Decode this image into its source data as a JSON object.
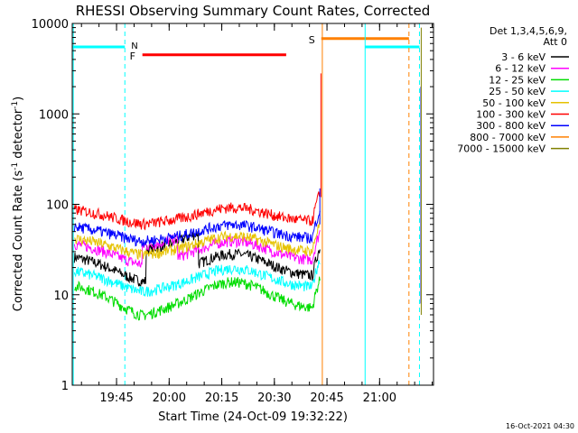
{
  "chart_data": {
    "type": "line",
    "title": "RHESSI Observing Summary Count Rates, Corrected",
    "xlabel": "Start Time (24-Oct-09 19:32:22)",
    "ylabel_main": "Corrected Count Rate (s",
    "ylabel_sup1": "-1",
    "ylabel_mid": " detector",
    "ylabel_sup2": "-1",
    "ylabel_end": ")",
    "yscale": "log",
    "ylim": [
      1,
      10000
    ],
    "xlim_minutes": [
      0,
      103
    ],
    "x_start": "19:32:22",
    "x_ticks": [
      {
        "label": "19:45",
        "min": 12.63
      },
      {
        "label": "20:00",
        "min": 27.63
      },
      {
        "label": "20:15",
        "min": 42.63
      },
      {
        "label": "20:30",
        "min": 57.63
      },
      {
        "label": "20:45",
        "min": 72.63
      },
      {
        "label": "21:00",
        "min": 87.63
      }
    ],
    "y_ticks": [
      {
        "label": "1",
        "v": 1
      },
      {
        "label": "10",
        "v": 10
      },
      {
        "label": "100",
        "v": 100
      },
      {
        "label": "1000",
        "v": 1000
      },
      {
        "label": "10000",
        "v": 10000
      }
    ],
    "legend_header": [
      "Det 1,3,4,5,6,9,",
      "Att 0"
    ],
    "series": [
      {
        "name": "3 - 6 keV",
        "color": "#000000"
      },
      {
        "name": "6 - 12 keV",
        "color": "#ff00ff"
      },
      {
        "name": "12 - 25 keV",
        "color": "#00dd00"
      },
      {
        "name": "25 - 50 keV",
        "color": "#00ffff"
      },
      {
        "name": "50 - 100 keV",
        "color": "#e6c200"
      },
      {
        "name": "100 - 300 keV",
        "color": "#ff0000"
      },
      {
        "name": "300 - 800 keV",
        "color": "#0000ff"
      },
      {
        "name": "800 - 7000 keV",
        "color": "#ff8000"
      },
      {
        "name": "7000 - 15000 keV",
        "color": "#808000"
      }
    ],
    "flag_labels": {
      "night": "N",
      "flare": "F",
      "saa": "S"
    },
    "flags": {
      "night": [
        {
          "start": 0,
          "end": 15,
          "level": 5500
        },
        {
          "start": 83.5,
          "end": 99,
          "level": 5500
        }
      ],
      "flare": [
        {
          "start": 20,
          "end": 61,
          "level": 4500
        }
      ],
      "saa": [
        {
          "start": 71,
          "end": 96,
          "level": 6800
        }
      ]
    },
    "data_gap": [
      71.5,
      96.5
    ]
  },
  "footer_date": "16-Oct-2021 04:30"
}
